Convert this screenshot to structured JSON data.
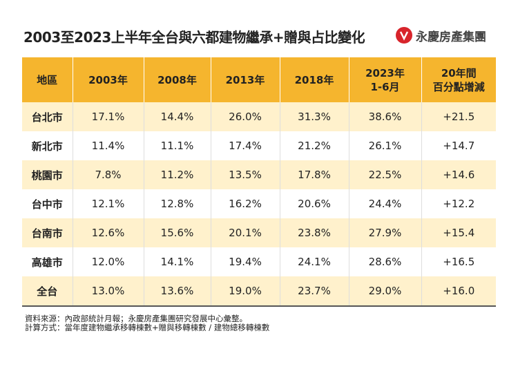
{
  "header": {
    "title": "2003至2023上半年全台與六都建物繼承+贈與占比變化",
    "brand": "永慶房產集團"
  },
  "table": {
    "columns": [
      "地區",
      "2003年",
      "2008年",
      "2013年",
      "2018年",
      "2023年\n1-6月",
      "20年間\n百分點增減"
    ],
    "rows": [
      [
        "台北市",
        "17.1%",
        "14.4%",
        "26.0%",
        "31.3%",
        "38.6%",
        "+21.5"
      ],
      [
        "新北市",
        "11.4%",
        "11.1%",
        "17.4%",
        "21.2%",
        "26.1%",
        "+14.7"
      ],
      [
        "桃園市",
        "7.8%",
        "11.2%",
        "13.5%",
        "17.8%",
        "22.5%",
        "+14.6"
      ],
      [
        "台中市",
        "12.1%",
        "12.8%",
        "16.2%",
        "20.6%",
        "24.4%",
        "+12.2"
      ],
      [
        "台南市",
        "12.6%",
        "15.6%",
        "20.1%",
        "23.8%",
        "27.9%",
        "+15.4"
      ],
      [
        "高雄市",
        "12.0%",
        "14.1%",
        "19.4%",
        "24.1%",
        "28.6%",
        "+16.5"
      ],
      [
        "全台",
        "13.0%",
        "13.6%",
        "19.0%",
        "23.7%",
        "29.0%",
        "+16.0"
      ]
    ]
  },
  "notes": [
    "資料來源：內政部統計月報；永慶房產集團研究發展中心彙整。",
    "計算方式：當年度建物繼承移轉棟數+贈與移轉棟數 / 建物總移轉棟數"
  ]
}
